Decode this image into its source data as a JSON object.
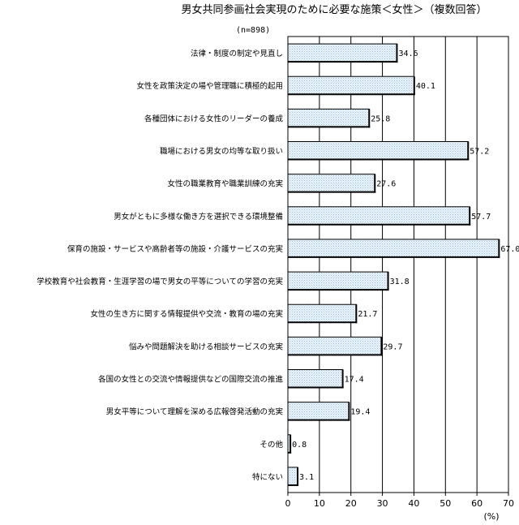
{
  "chart_data": {
    "type": "bar",
    "orientation": "horizontal",
    "title": "男女共同参画社会実現のために必要な施策＜女性＞（複数回答）",
    "note": "(n=898)",
    "xlabel": "(%)",
    "xlim": [
      0,
      70
    ],
    "xticks": [
      0,
      10,
      20,
      30,
      40,
      50,
      60,
      70
    ],
    "grid": true,
    "categories": [
      "法律・制度の制定や見直し",
      "女性を政策決定の場や管理職に積極的起用",
      "各種団体における女性のリーダーの養成",
      "職場における男女の均等な取り扱い",
      "女性の職業教育や職業訓練の充実",
      "男女がともに多様な働き方を選択できる環境整備",
      "保育の施設・サービスや高齢者等の施設・介護サービスの充実",
      "学校教育や社会教育・生涯学習の場で男女の平等についての学習の充実",
      "女性の生き方に関する情報提供や交流・教育の場の充実",
      "悩みや問題解決を助ける相談サービスの充実",
      "各国の女性との交流や情報提供などの国際交流の推進",
      "男女平等について理解を深める広報啓発活動の充実",
      "その他",
      "特にない"
    ],
    "values": [
      34.6,
      40.1,
      25.8,
      57.2,
      27.6,
      57.7,
      67.0,
      31.8,
      21.7,
      29.7,
      17.4,
      19.4,
      0.8,
      3.1
    ],
    "value_labels": [
      "34.6",
      "40.1",
      "25.8",
      "57.2",
      "27.6",
      "57.7",
      "67.0",
      "31.8",
      "21.7",
      "29.7",
      "17.4",
      "19.4",
      "0.8",
      "3.1"
    ],
    "bar_fill": "#e4f0f8",
    "bar_stroke": "#000000"
  }
}
